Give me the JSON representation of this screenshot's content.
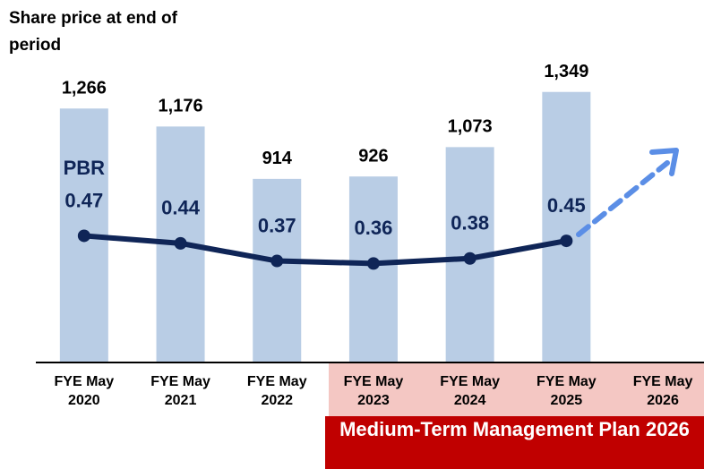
{
  "chart_data": {
    "type": "bar",
    "categories": [
      "FYE May 2020",
      "FYE May 2021",
      "FYE May 2022",
      "FYE May 2023",
      "FYE May 2024",
      "FYE May 2025",
      "FYE May 2026"
    ],
    "series": [
      {
        "name": "Share price at end of period",
        "type": "bar",
        "color": "#b9cde5",
        "values": [
          1266,
          1176,
          914,
          926,
          1073,
          1349,
          null
        ],
        "value_labels": [
          "1,266",
          "1,176",
          "914",
          "926",
          "1,073",
          "1,349",
          null
        ]
      },
      {
        "name": "PBR",
        "type": "line",
        "axis": "y2",
        "color": "#0f2557",
        "values": [
          0.47,
          0.44,
          0.37,
          0.36,
          0.38,
          0.45,
          null
        ]
      }
    ],
    "ylim": [
      0,
      1800
    ],
    "y2lim": [
      -0.03,
      1.4
    ],
    "annotation": "Medium-Term Management Plan 2026"
  }
}
